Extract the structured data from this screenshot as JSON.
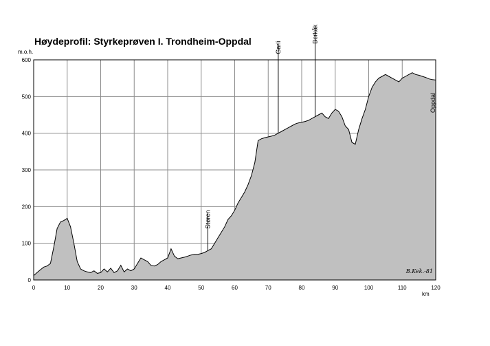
{
  "title": "Høydeprofil:  Styrkeprøven I. Trondheim-Oppdal",
  "signature": "B.Kek.-81",
  "chart_data": {
    "type": "area",
    "title": "Høydeprofil:  Styrkeprøven I. Trondheim-Oppdal",
    "xlabel": "km",
    "ylabel": "m.o.h.",
    "xlim": [
      0,
      120
    ],
    "ylim": [
      0,
      600
    ],
    "xticks": [
      0,
      10,
      20,
      30,
      40,
      50,
      60,
      70,
      80,
      90,
      100,
      110,
      120
    ],
    "yticks": [
      0,
      100,
      200,
      300,
      400,
      500,
      600
    ],
    "grid": true,
    "fill_color": "#c0c0c0",
    "line_color": "#000000",
    "x": [
      0,
      1,
      2,
      3,
      4,
      5,
      6,
      7,
      8,
      9,
      10,
      11,
      12,
      13,
      14,
      15,
      16,
      17,
      18,
      19,
      20,
      21,
      22,
      23,
      24,
      25,
      26,
      27,
      28,
      29,
      30,
      31,
      32,
      33,
      34,
      35,
      36,
      37,
      38,
      39,
      40,
      41,
      42,
      43,
      44,
      45,
      46,
      47,
      48,
      49,
      50,
      51,
      52,
      53,
      54,
      55,
      56,
      57,
      58,
      59,
      60,
      61,
      62,
      63,
      64,
      65,
      66,
      67,
      68,
      69,
      70,
      71,
      72,
      73,
      74,
      75,
      76,
      77,
      78,
      79,
      80,
      81,
      82,
      83,
      84,
      85,
      86,
      87,
      88,
      89,
      90,
      91,
      92,
      93,
      94,
      95,
      96,
      97,
      98,
      99,
      100,
      101,
      102,
      103,
      104,
      105,
      106,
      107,
      108,
      109,
      110,
      111,
      112,
      113,
      114,
      115,
      116,
      117,
      118,
      119,
      120
    ],
    "y": [
      12,
      20,
      28,
      35,
      38,
      45,
      90,
      140,
      158,
      162,
      168,
      145,
      100,
      50,
      30,
      25,
      22,
      20,
      25,
      18,
      20,
      30,
      22,
      32,
      20,
      25,
      40,
      22,
      30,
      25,
      30,
      45,
      60,
      55,
      50,
      40,
      38,
      42,
      50,
      55,
      60,
      85,
      65,
      58,
      60,
      62,
      65,
      68,
      70,
      70,
      72,
      75,
      80,
      85,
      100,
      115,
      130,
      145,
      165,
      175,
      190,
      210,
      225,
      240,
      260,
      285,
      320,
      380,
      385,
      388,
      390,
      392,
      395,
      400,
      405,
      410,
      415,
      420,
      425,
      428,
      430,
      432,
      435,
      440,
      445,
      450,
      455,
      445,
      440,
      455,
      465,
      460,
      445,
      420,
      410,
      375,
      370,
      410,
      440,
      465,
      500,
      525,
      540,
      550,
      555,
      560,
      555,
      550,
      545,
      540,
      550,
      555,
      560,
      565,
      560,
      558,
      555,
      552,
      548,
      546,
      545
    ],
    "annotations": [
      {
        "label": "Støren",
        "x": 52
      },
      {
        "label": "Garli",
        "x": 73
      },
      {
        "label": "Berkåk",
        "x": 84
      },
      {
        "label": "Oppdal",
        "x": 120
      }
    ]
  }
}
